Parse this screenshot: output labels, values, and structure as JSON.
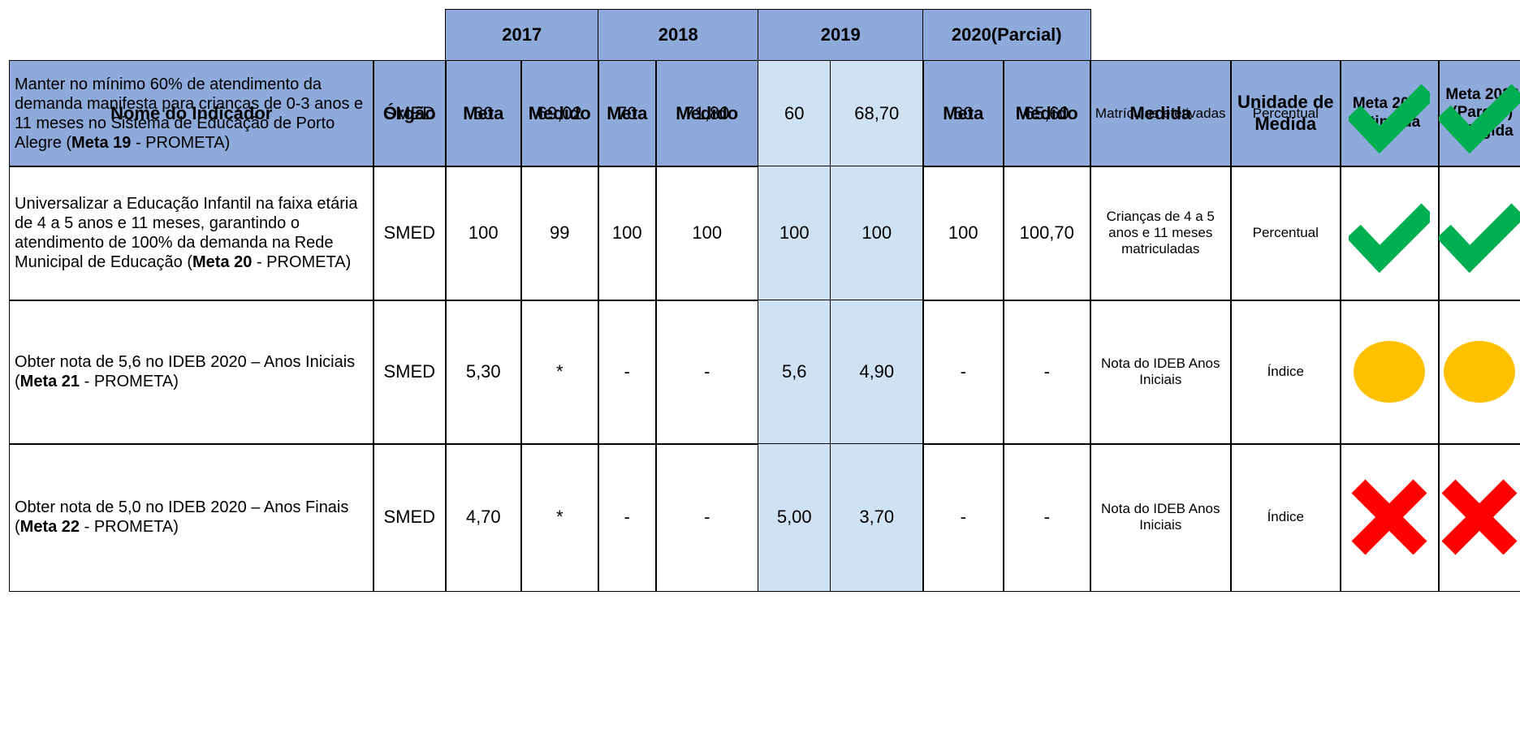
{
  "header": {
    "years": [
      "2017",
      "2018",
      "2019",
      "2020(Parcial)"
    ],
    "columns": [
      "Nome do Indicador",
      "Órgão",
      "Meta",
      "Medido",
      "Meta",
      "Medido",
      "Meta",
      "Medido",
      "Meta",
      "Medido",
      "Medida",
      "Unidade de Medida",
      "Meta 2019 Atingida",
      "Meta 2020 (Parcial) Atingida"
    ]
  },
  "rows": [
    {
      "indicator": [
        "Manter no mínimo 60% de atendimento da demanda manifesta para crianças de 0-3 anos e 11 meses no Sistema de Educação de Porto Alegre (",
        "Meta 19",
        " - PROMETA)"
      ],
      "orgao": "SMED",
      "values": [
        "60",
        "69,02",
        "70",
        "71,80",
        "60",
        "68,70",
        "60",
        "65,60"
      ],
      "medida": "Matrículas efetivadas",
      "unidade": "Percentual"
    },
    {
      "indicator": [
        "Universalizar a Educação Infantil na faixa etária de 4 a 5 anos e 11 meses, garantindo o atendimento de 100% da demanda na Rede Municipal de Educação (",
        "Meta 20",
        " - PROMETA)"
      ],
      "orgao": "SMED",
      "values": [
        "100",
        "99",
        "100",
        "100",
        "100",
        "100",
        "100",
        "100,70"
      ],
      "medida": "Crianças de 4 a 5 anos e 11 meses matriculadas",
      "unidade": "Percentual"
    },
    {
      "indicator": [
        "Obter nota de 5,6 no IDEB 2020 – Anos Iniciais (",
        "Meta 21",
        " - PROMETA)"
      ],
      "orgao": "SMED",
      "values": [
        "5,30",
        "*",
        "-",
        "-",
        "5,6",
        "4,90",
        "-",
        "-"
      ],
      "medida": "Nota do IDEB Anos Iniciais",
      "unidade": "Índice"
    },
    {
      "indicator": [
        "Obter nota de 5,0 no IDEB 2020 – Anos Finais (",
        "Meta 22",
        " - PROMETA)"
      ],
      "orgao": "SMED",
      "values": [
        "4,70",
        "*",
        "-",
        "-",
        "5,00",
        "3,70",
        "-",
        "-"
      ],
      "medida": "Nota do IDEB Anos Iniciais",
      "unidade": "Índice"
    }
  ]
}
